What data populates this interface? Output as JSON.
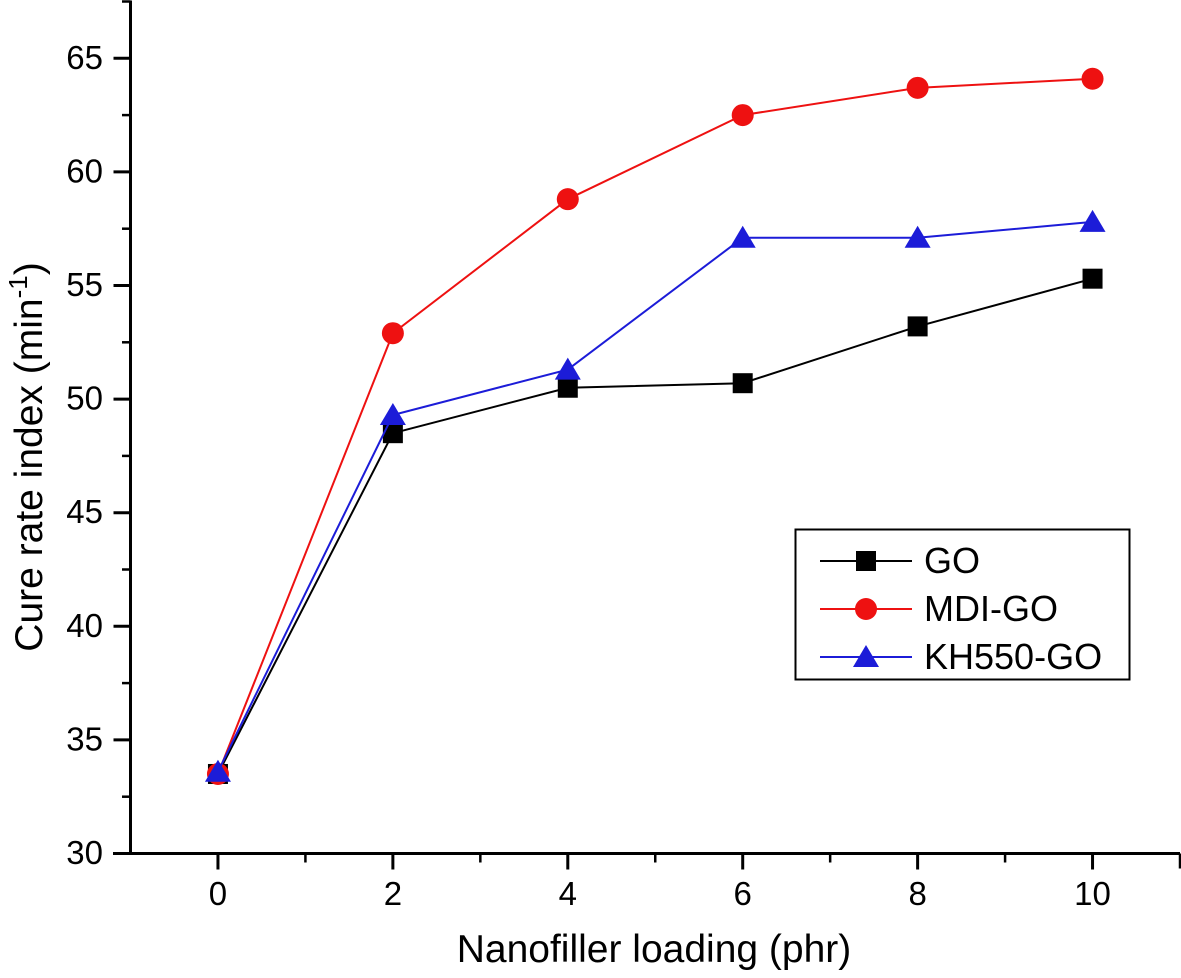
{
  "chart_data": {
    "type": "line",
    "title": "",
    "xlabel": "Nanofiller loading (phr)",
    "ylabel": "Cure rate index (min⁻¹)",
    "ylabel_parts": [
      "Cure rate index (min",
      "-1",
      ")"
    ],
    "x": [
      0,
      2,
      4,
      6,
      8,
      10
    ],
    "series": [
      {
        "name": "GO",
        "marker": "square",
        "color": "#000000",
        "values": [
          33.5,
          48.5,
          50.5,
          50.7,
          53.2,
          55.3
        ]
      },
      {
        "name": "MDI-GO",
        "marker": "circle",
        "color": "#ee1111",
        "values": [
          33.5,
          52.9,
          58.8,
          62.5,
          63.7,
          64.1
        ]
      },
      {
        "name": "KH550-GO",
        "marker": "triangle",
        "color": "#1c1cd8",
        "values": [
          33.6,
          49.3,
          51.3,
          57.1,
          57.1,
          57.8
        ]
      }
    ],
    "xlim": [
      -1,
      11
    ],
    "ylim": [
      30,
      67.5
    ],
    "x_ticks": [
      0,
      2,
      4,
      6,
      8,
      10
    ],
    "y_ticks": [
      30,
      35,
      40,
      45,
      50,
      55,
      60,
      65
    ],
    "x_minor_step": 1,
    "y_minor_step": 2.5,
    "grid": false,
    "legend": {
      "position": "middle-right",
      "entries": [
        "GO",
        "MDI-GO",
        "KH550-GO"
      ]
    }
  }
}
